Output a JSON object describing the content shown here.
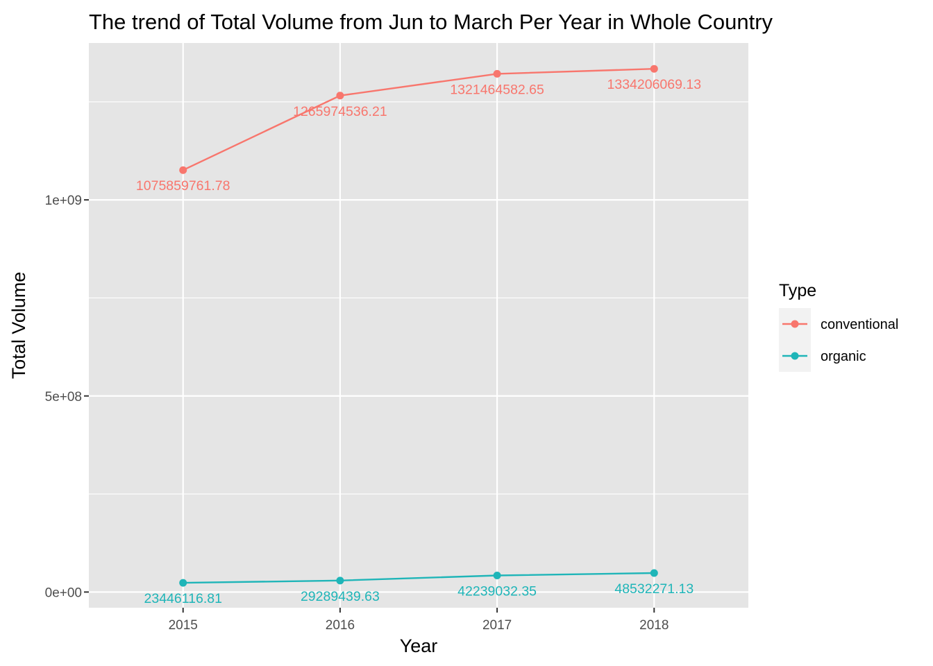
{
  "chart_data": {
    "type": "line",
    "title": "The trend of Total Volume from Jun to March Per Year in Whole Country",
    "xlabel": "Year",
    "ylabel": "Total Volume",
    "x": [
      2015,
      2016,
      2017,
      2018
    ],
    "x_tick_labels": [
      "2015",
      "2016",
      "2017",
      "2018"
    ],
    "xlim": [
      2014.4,
      2018.6
    ],
    "ylim": [
      -40000000,
      1400000000
    ],
    "y_ticks": [
      0,
      500000000,
      1000000000
    ],
    "y_tick_labels": [
      "0e+00",
      "5e+08",
      "1e+09"
    ],
    "grid": true,
    "legend": {
      "title": "Type",
      "position": "right"
    },
    "series": [
      {
        "name": "conventional",
        "color": "#F8766D",
        "values": [
          1075859761.78,
          1265974536.21,
          1321464582.65,
          1334206069.13
        ],
        "labels": [
          "1075859761.78",
          "1265974536.21",
          "1321464582.65",
          "1334206069.13"
        ]
      },
      {
        "name": "organic",
        "color": "#1FB5B8",
        "values": [
          23446116.81,
          29289439.63,
          42239032.35,
          48532271.13
        ],
        "labels": [
          "23446116.81",
          "29289439.63",
          "42239032.35",
          "48532271.13"
        ]
      }
    ]
  }
}
